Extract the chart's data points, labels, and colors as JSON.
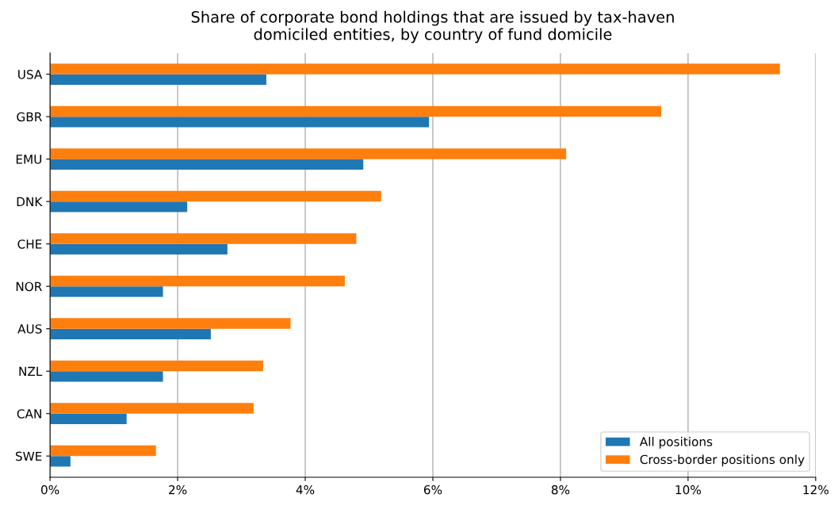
{
  "chart_data": {
    "type": "bar",
    "orientation": "horizontal",
    "title": "Share of corporate bond holdings that are issued by tax-haven\ndomiciled entities, by country of fund domicile",
    "categories": [
      "USA",
      "GBR",
      "EMU",
      "DNK",
      "CHE",
      "NOR",
      "AUS",
      "NZL",
      "CAN",
      "SWE"
    ],
    "series": [
      {
        "name": "All positions",
        "color": "#1f77b4",
        "values": [
          3.39,
          5.94,
          4.91,
          2.15,
          2.78,
          1.77,
          2.52,
          1.77,
          1.2,
          0.32
        ]
      },
      {
        "name": "Cross-border positions only",
        "color": "#ff7f0e",
        "values": [
          11.44,
          9.58,
          8.09,
          5.19,
          4.8,
          4.62,
          3.77,
          3.34,
          3.19,
          1.66
        ]
      }
    ],
    "xlim": [
      0,
      12
    ],
    "xticks": [
      {
        "value": 0,
        "label": "0%"
      },
      {
        "value": 2,
        "label": "2%"
      },
      {
        "value": 4,
        "label": "4%"
      },
      {
        "value": 6,
        "label": "6%"
      },
      {
        "value": 8,
        "label": "8%"
      },
      {
        "value": 10,
        "label": "10%"
      },
      {
        "value": 12,
        "label": "12%"
      }
    ],
    "grid": "x",
    "legend": "lower right"
  }
}
